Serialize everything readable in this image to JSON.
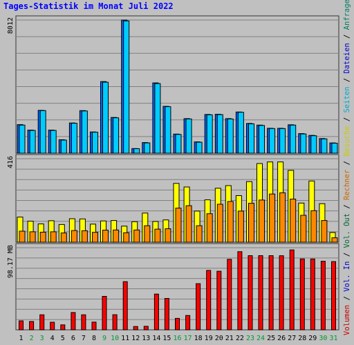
{
  "title": "Tages-Statistik im Monat Juli 2022",
  "right_legend": [
    {
      "text": "Volumen",
      "color": "#cc0000"
    },
    {
      "text": " / ",
      "color": "#000000"
    },
    {
      "text": "Vol. In",
      "color": "#0000cc"
    },
    {
      "text": " / ",
      "color": "#000000"
    },
    {
      "text": "Vol. Out",
      "color": "#006633"
    },
    {
      "text": " / ",
      "color": "#000000"
    },
    {
      "text": "Rechner",
      "color": "#cc6600"
    },
    {
      "text": " / ",
      "color": "#000000"
    },
    {
      "text": "Besuche",
      "color": "#cccc00"
    },
    {
      "text": " / ",
      "color": "#000000"
    },
    {
      "text": "Seiten",
      "color": "#00aacc"
    },
    {
      "text": " / ",
      "color": "#000000"
    },
    {
      "text": "Dateien",
      "color": "#0000cc"
    },
    {
      "text": " / ",
      "color": "#000000"
    },
    {
      "text": "Anfragen",
      "color": "#008066"
    }
  ],
  "chart_data": [
    {
      "type": "bar",
      "panel": "top",
      "y_max_label": "8012",
      "ylim": [
        0,
        8012
      ],
      "series": [
        {
          "color": "#0066ff",
          "values": [
            1720,
            1390,
            2580,
            1390,
            810,
            1820,
            2560,
            1280,
            4310,
            2150,
            8012,
            280,
            640,
            4230,
            2820,
            1150,
            2080,
            680,
            2330,
            2340,
            2080,
            2480,
            1790,
            1690,
            1500,
            1500,
            1710,
            1180,
            1070,
            880,
            620
          ]
        },
        {
          "color": "#00ccff",
          "values": [
            1690,
            1370,
            2560,
            1370,
            790,
            1800,
            2540,
            1260,
            4270,
            2130,
            7960,
            270,
            620,
            4190,
            2800,
            1130,
            2060,
            660,
            2310,
            2320,
            2060,
            2460,
            1770,
            1670,
            1480,
            1480,
            1690,
            1160,
            1050,
            860,
            600
          ]
        }
      ]
    },
    {
      "type": "bar",
      "panel": "middle",
      "y_max_label": "416",
      "ylim": [
        0,
        416
      ],
      "series": [
        {
          "color": "#ffff00",
          "values": [
            125,
            105,
            91,
            107,
            88,
            117,
            116,
            90,
            106,
            108,
            80,
            102,
            145,
            103,
            111,
            293,
            275,
            155,
            211,
            269,
            282,
            232,
            302,
            392,
            400,
            400,
            358,
            195,
            305,
            192,
            48
          ]
        },
        {
          "color": "#ff8800",
          "values": [
            55,
            52,
            50,
            52,
            46,
            58,
            57,
            49,
            60,
            61,
            47,
            61,
            82,
            65,
            67,
            170,
            182,
            82,
            142,
            189,
            203,
            155,
            194,
            210,
            240,
            246,
            215,
            134,
            157,
            108,
            22
          ]
        }
      ]
    },
    {
      "type": "bar",
      "panel": "bottom",
      "y_max_label": "98.17 MB",
      "ylim": [
        0,
        98.17
      ],
      "series": [
        {
          "color": "#ff0000",
          "values": [
            10.7,
            10.0,
            18.0,
            9.1,
            5.9,
            20.7,
            18.0,
            9.2,
            40.0,
            18.1,
            57.6,
            4.0,
            4.2,
            42.7,
            37.5,
            13.7,
            17.2,
            55.2,
            71.0,
            70.0,
            84.3,
            93.5,
            88.7,
            88.7,
            88.7,
            88.6,
            95.5,
            84.8,
            84.7,
            82.0,
            81.6
          ]
        }
      ]
    }
  ],
  "x_labels": [
    "1",
    "2",
    "3",
    "4",
    "5",
    "6",
    "7",
    "8",
    "9",
    "10",
    "11",
    "12",
    "13",
    "14",
    "15",
    "16",
    "17",
    "18",
    "19",
    "20",
    "21",
    "22",
    "23",
    "24",
    "25",
    "26",
    "27",
    "28",
    "29",
    "30",
    "31"
  ],
  "weekend_days": [
    2,
    3,
    9,
    10,
    16,
    17,
    23,
    24,
    30,
    31
  ],
  "colors": {
    "weekday": "#000000",
    "weekend": "#009933"
  }
}
